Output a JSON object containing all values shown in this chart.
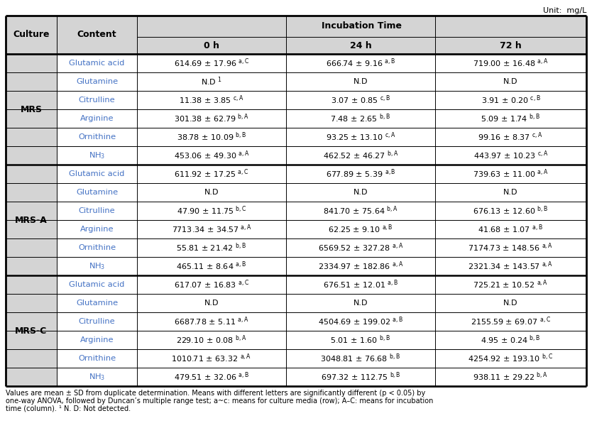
{
  "unit_label": "Unit:  mg/L",
  "incubation_header": "Incubation Time",
  "rows": [
    [
      "MRS",
      "Glutamic acid",
      "614.69 ± 17.96",
      "a,C",
      "666.74 ± 9.16",
      "a,B",
      "719.00 ± 16.48",
      "a,A"
    ],
    [
      "MRS",
      "Glutamine",
      "N.D",
      "1",
      "N.D",
      "",
      "N.D",
      ""
    ],
    [
      "MRS",
      "Citrulline",
      "11.38 ± 3.85",
      "c,A",
      "3.07 ± 0.85",
      "c,B",
      "3.91 ± 0.20",
      "c,B"
    ],
    [
      "MRS",
      "Arginine",
      "301.38 ± 62.79",
      "b,A",
      "7.48 ± 2.65",
      "b,B",
      "5.09 ± 1.74",
      "b,B"
    ],
    [
      "MRS",
      "Ornithine",
      "38.78 ± 10.09",
      "b,B",
      "93.25 ± 13.10",
      "c,A",
      "99.16 ± 8.37",
      "c,A"
    ],
    [
      "MRS",
      "NH3",
      "453.06 ± 49.30",
      "a,A",
      "462.52 ± 46.27",
      "b,A",
      "443.97 ± 10.23",
      "c,A"
    ],
    [
      "MRS-A",
      "Glutamic acid",
      "611.92 ± 17.25",
      "a,C",
      "677.89 ± 5.39",
      "a,B",
      "739.63 ± 11.00",
      "a,A"
    ],
    [
      "MRS-A",
      "Glutamine",
      "N.D",
      "",
      "N.D",
      "",
      "N.D",
      ""
    ],
    [
      "MRS-A",
      "Citrulline",
      "47.90 ± 11.75",
      "b,C",
      "841.70 ± 75.64",
      "b,A",
      "676.13 ± 12.60",
      "b,B"
    ],
    [
      "MRS-A",
      "Arginine",
      "7713.34 ± 34.57",
      "a,A",
      "62.25 ± 9.10",
      "a,B",
      "41.68 ± 1.07",
      "a,B"
    ],
    [
      "MRS-A",
      "Ornithine",
      "55.81 ± 21.42",
      "b,B",
      "6569.52 ± 327.28",
      "a,A",
      "7174.73 ± 148.56",
      "a,A"
    ],
    [
      "MRS-A",
      "NH3",
      "465.11 ± 8.64",
      "a,B",
      "2334.97 ± 182.86",
      "a,A",
      "2321.34 ± 143.57",
      "a,A"
    ],
    [
      "MRS-C",
      "Glutamic acid",
      "617.07 ± 16.83",
      "a,C",
      "676.51 ± 12.01",
      "a,B",
      "725.21 ± 10.52",
      "a,A"
    ],
    [
      "MRS-C",
      "Glutamine",
      "N.D",
      "",
      "N.D",
      "",
      "N.D",
      ""
    ],
    [
      "MRS-C",
      "Citrulline",
      "6687.78 ± 5.11",
      "a,A",
      "4504.69 ± 199.02",
      "a,B",
      "2155.59 ± 69.07",
      "a,C"
    ],
    [
      "MRS-C",
      "Arginine",
      "229.10 ± 0.08",
      "b,A",
      "5.01 ± 1.60",
      "b,B",
      "4.95 ± 0.24",
      "b,B"
    ],
    [
      "MRS-C",
      "Ornithine",
      "1010.71 ± 63.32",
      "a,A",
      "3048.81 ± 76.68",
      "b,B",
      "4254.92 ± 193.10",
      "b,C"
    ],
    [
      "MRS-C",
      "NH3",
      "479.51 ± 32.06",
      "a,B",
      "697.32 ± 112.75",
      "b,B",
      "938.11 ± 29.22",
      "b,A"
    ]
  ],
  "footnote_line1": "Values are mean ± SD from duplicate determination. Means with different letters are significantly different (p < 0.05) by",
  "footnote_line2": "one-way ANOVA, followed by Duncan’s multiple range test; a~c: means for culture media (row); A–C: means for incubation",
  "footnote_line3": "time (column). ¹ N. D: Not detected.",
  "header_bg": "#D4D4D4",
  "border_color": "#000000",
  "blue_text": "#4472C4",
  "culture_spans": [
    [
      0,
      5,
      "MRS"
    ],
    [
      6,
      11,
      "MRS-A"
    ],
    [
      12,
      17,
      "MRS-C"
    ]
  ]
}
